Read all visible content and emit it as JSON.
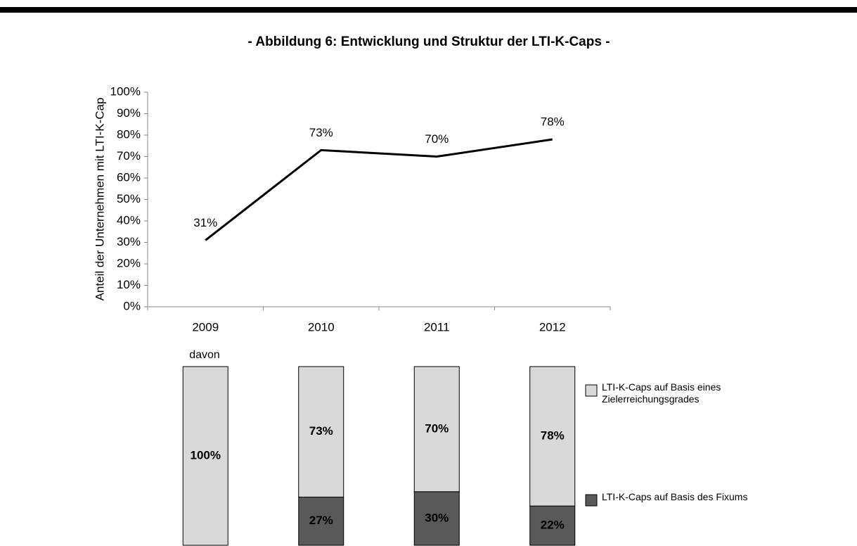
{
  "chart_data": [
    {
      "type": "line",
      "title": "- Abbildung 6: Entwicklung und Struktur der LTI-K-Caps -",
      "y_label": "Anteil der Unternehmen mit LTI-K-Cap",
      "categories": [
        "2009",
        "2010",
        "2011",
        "2012"
      ],
      "values": [
        31,
        73,
        70,
        78
      ],
      "value_labels": [
        "31%",
        "73%",
        "70%",
        "78%"
      ],
      "color": "#000000",
      "ylim": [
        0,
        100
      ],
      "yticks": [
        {
          "value": 0,
          "label": "0%"
        },
        {
          "value": 10,
          "label": "10%"
        },
        {
          "value": 20,
          "label": "20%"
        },
        {
          "value": 30,
          "label": "30%"
        },
        {
          "value": 40,
          "label": "40%"
        },
        {
          "value": 50,
          "label": "50%"
        },
        {
          "value": 60,
          "label": "60%"
        },
        {
          "value": 70,
          "label": "70%"
        },
        {
          "value": 80,
          "label": "80%"
        },
        {
          "value": 90,
          "label": "90%"
        },
        {
          "value": 100,
          "label": "100%"
        }
      ]
    },
    {
      "type": "stacked_bar",
      "annotation": "davon",
      "ylim": [
        0,
        100
      ],
      "series": [
        {
          "name": "LTI-K-Caps auf Basis des Fixums",
          "color": "#595959",
          "values": [
            0,
            27,
            30,
            22
          ],
          "value_labels": [
            null,
            "27%",
            "30%",
            "22%"
          ]
        },
        {
          "name": "LTI-K-Caps auf Basis eines Zielerreichungsgrades",
          "color": "#d9d9d9",
          "values": [
            100,
            73,
            70,
            78
          ],
          "value_labels": [
            "100%",
            "73%",
            "70%",
            "78%"
          ]
        }
      ]
    }
  ]
}
